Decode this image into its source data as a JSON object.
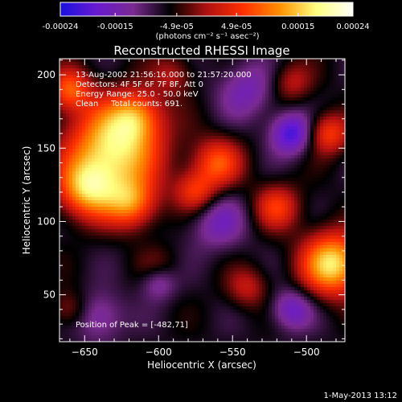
{
  "colorbar": {
    "tick_labels": [
      "-0.00024",
      "-0.00015",
      "-4.9e-05",
      "4.9e-05",
      "0.00015",
      "0.00024"
    ],
    "tick_values": [
      -0.00024,
      -0.00015,
      -4.9e-05,
      4.9e-05,
      0.00015,
      0.00024
    ],
    "range": [
      -0.00024,
      0.00024
    ],
    "unit_label": "(photons cm⁻² s⁻¹ asec⁻²)",
    "colors": [
      "#1a10e0",
      "#6a1ad0",
      "#7a2a90",
      "#000000",
      "#b01010",
      "#ff3000",
      "#ff9000",
      "#ffff80",
      "#ffffff"
    ]
  },
  "chart_data": {
    "type": "heatmap",
    "title": "Reconstructed RHESSI Image",
    "xlabel": "Heliocentric X (arcsec)",
    "ylabel": "Heliocentric Y (arcsec)",
    "xlim": [
      -667,
      -474
    ],
    "ylim": [
      18,
      211
    ],
    "x_ticks": [
      -650,
      -600,
      -550,
      -500
    ],
    "y_ticks": [
      50,
      100,
      150,
      200
    ],
    "annotations": [
      "13-Aug-2002 21:56:16.000 to 21:57:20.000",
      "Detectors: 4F 5F 6F 7F 8F, Att 0",
      "Energy Range: 25.0 - 50.0 keV",
      "Clean     Total counts: 691."
    ],
    "peak_label": "Position of Peak = [-482,71]",
    "peak": {
      "x": -482,
      "y": 71
    },
    "sources": [
      {
        "x": -630,
        "y": 150,
        "value": 0.00024,
        "spread": 22
      },
      {
        "x": -648,
        "y": 122,
        "value": 0.00018,
        "spread": 14
      },
      {
        "x": -615,
        "y": 172,
        "value": 0.00012,
        "spread": 12
      },
      {
        "x": -660,
        "y": 190,
        "value": 0.00014,
        "spread": 10
      },
      {
        "x": -618,
        "y": 112,
        "value": 0.00015,
        "spread": 12
      },
      {
        "x": -482,
        "y": 71,
        "value": 0.00024,
        "spread": 15
      },
      {
        "x": -560,
        "y": 140,
        "value": 0.00014,
        "spread": 12
      },
      {
        "x": -575,
        "y": 120,
        "value": 0.00012,
        "spread": 10
      },
      {
        "x": -520,
        "y": 110,
        "value": 0.00012,
        "spread": 11
      },
      {
        "x": -485,
        "y": 160,
        "value": 0.00013,
        "spread": 10
      },
      {
        "x": -600,
        "y": 65,
        "value": 9e-05,
        "spread": 10
      },
      {
        "x": -540,
        "y": 55,
        "value": 8e-05,
        "spread": 10
      },
      {
        "x": -590,
        "y": 200,
        "value": 7e-05,
        "spread": 10
      },
      {
        "x": -510,
        "y": 195,
        "value": 8e-05,
        "spread": 10
      },
      {
        "x": -660,
        "y": 40,
        "value": 7e-05,
        "spread": 9
      },
      {
        "x": -510,
        "y": 160,
        "value": -0.00014,
        "spread": 10
      },
      {
        "x": -510,
        "y": 40,
        "value": -0.0001,
        "spread": 10
      },
      {
        "x": -600,
        "y": 60,
        "value": -0.00013,
        "spread": 9
      },
      {
        "x": -560,
        "y": 100,
        "value": -8e-05,
        "spread": 14
      },
      {
        "x": -640,
        "y": 35,
        "value": -8e-05,
        "spread": 12
      },
      {
        "x": -540,
        "y": 190,
        "value": -8e-05,
        "spread": 14
      }
    ],
    "grid": false
  },
  "footer_timestamp": "1-May-2013 13:12"
}
